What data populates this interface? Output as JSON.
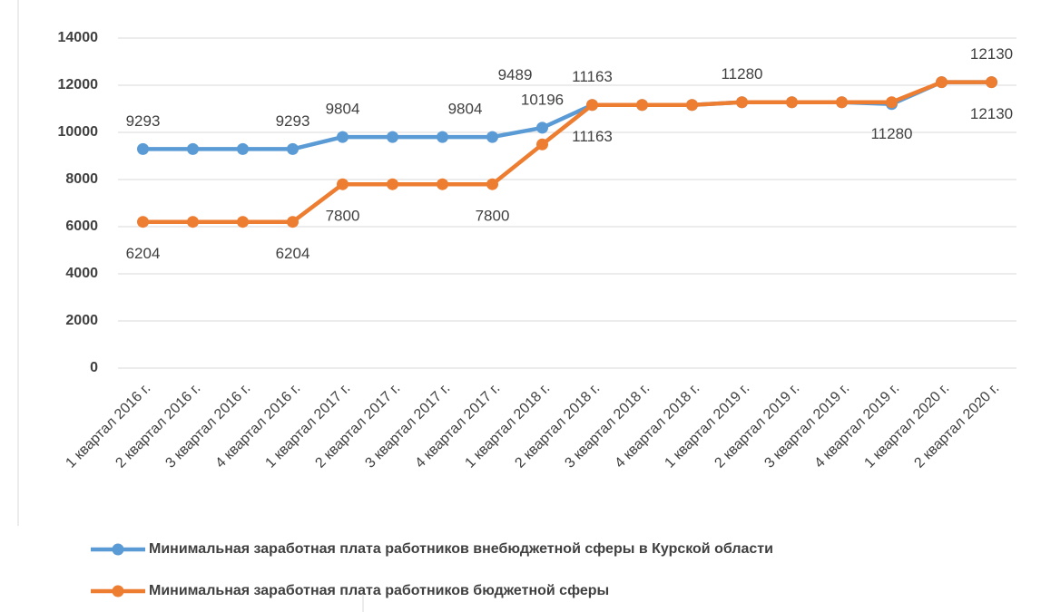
{
  "chart_data": {
    "type": "line",
    "categories": [
      "1 квартал 2016 г.",
      "2 квартал 2016 г.",
      "3 квартал 2016 г.",
      "4 квартал 2016 г.",
      "1 квартал 2017 г.",
      "2 квартал 2017 г.",
      "3 квартал 2017 г.",
      "4 квартал 2017 г.",
      "1 квартал 2018 г.",
      "2 квартал 2018 г.",
      "3 квартал 2018 г.",
      "4 квартал 2018 г.",
      "1 квартал 2019 г.",
      "2 квартал 2019 г.",
      "3 квартал 2019 г.",
      "4 квартал 2019 г.",
      "1 квартал 2020 г.",
      "2 квартал 2020 г."
    ],
    "series": [
      {
        "name": "Минимальная заработная плата работников внебюджетной сферы в Курской области",
        "color": "#5b9bd5",
        "values": [
          9293,
          9293,
          9293,
          9293,
          9804,
          9804,
          9804,
          9804,
          10196,
          11163,
          11163,
          11163,
          11280,
          11280,
          11280,
          11200,
          12130,
          12130
        ],
        "value_labels": [
          "9293",
          null,
          null,
          "9293",
          "9804",
          null,
          null,
          "9804",
          "10196",
          "11163",
          null,
          null,
          "11280",
          null,
          null,
          null,
          null,
          "12130"
        ]
      },
      {
        "name": "Минимальная заработная плата работников бюджетной сферы",
        "color": "#ed7d31",
        "values": [
          6204,
          6204,
          6204,
          6204,
          7800,
          7800,
          7800,
          7800,
          9489,
          11163,
          11163,
          11163,
          11280,
          11280,
          11280,
          11280,
          12130,
          12130
        ],
        "value_labels": [
          "6204",
          null,
          null,
          "6204",
          "7800",
          null,
          null,
          "7800",
          "9489",
          "11163",
          null,
          null,
          null,
          null,
          null,
          "11280",
          null,
          "12130"
        ]
      }
    ],
    "ylim": [
      0,
      14000
    ],
    "yticks": [
      0,
      2000,
      4000,
      6000,
      8000,
      10000,
      12000,
      14000
    ],
    "grid": true,
    "legend": "bottom"
  }
}
